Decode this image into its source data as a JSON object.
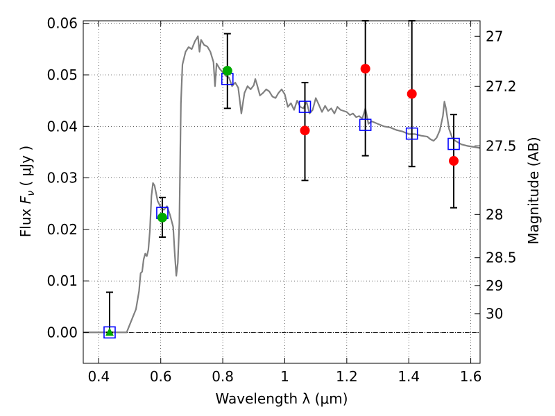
{
  "chart_data": {
    "type": "scatter",
    "xlabel": "Wavelength  λ (μm)",
    "ylabel": "Flux  Fν  ( μJy )",
    "ylabel_parts": {
      "prefix": "Flux  ",
      "symbol": "F",
      "subscript": "ν",
      "suffix": "  ( μJy )"
    },
    "y2label": "Magnitude (AB)",
    "xlim": [
      0.35,
      1.63
    ],
    "ylim": [
      -0.006,
      0.0605
    ],
    "xticks": [
      0.4,
      0.6,
      0.8,
      1,
      1.2,
      1.4,
      1.6
    ],
    "xtick_labels": [
      "0.4",
      "0.6",
      "0.8",
      "1",
      "1.2",
      "1.4",
      "1.6"
    ],
    "yticks": [
      0.0,
      0.01,
      0.02,
      0.03,
      0.04,
      0.05,
      0.06
    ],
    "ytick_labels": [
      "0.00",
      "0.01",
      "0.02",
      "0.03",
      "0.04",
      "0.05",
      "0.06"
    ],
    "y2ticks": [
      {
        "label": "27",
        "flux": 0.0575
      },
      {
        "label": "27.2",
        "flux": 0.0478
      },
      {
        "label": "27.5",
        "flux": 0.0362
      },
      {
        "label": "28",
        "flux": 0.0229
      },
      {
        "label": "28.5",
        "flux": 0.0145
      },
      {
        "label": "29",
        "flux": 0.0091
      },
      {
        "label": "30",
        "flux": 0.0036
      }
    ],
    "grid": true,
    "zero_line": 0,
    "colors": {
      "model": "#808080",
      "model_photometry": "#0000ff",
      "detection": "#00aa00",
      "nondetection": "#ff0000",
      "errorbar": "#000000"
    },
    "series": [
      {
        "kind": "line",
        "points": [
          [
            0.35,
            0.0
          ],
          [
            0.49,
            0.0
          ],
          [
            0.5,
            0.0015
          ],
          [
            0.51,
            0.003
          ],
          [
            0.52,
            0.0045
          ],
          [
            0.53,
            0.008
          ],
          [
            0.535,
            0.0115
          ],
          [
            0.54,
            0.0118
          ],
          [
            0.545,
            0.0142
          ],
          [
            0.55,
            0.0153
          ],
          [
            0.555,
            0.0148
          ],
          [
            0.56,
            0.016
          ],
          [
            0.565,
            0.0198
          ],
          [
            0.57,
            0.0265
          ],
          [
            0.575,
            0.029
          ],
          [
            0.58,
            0.0285
          ],
          [
            0.59,
            0.0255
          ],
          [
            0.6,
            0.0243
          ],
          [
            0.61,
            0.0238
          ],
          [
            0.62,
            0.0245
          ],
          [
            0.63,
            0.0228
          ],
          [
            0.64,
            0.0205
          ],
          [
            0.645,
            0.0155
          ],
          [
            0.65,
            0.011
          ],
          [
            0.655,
            0.0135
          ],
          [
            0.66,
            0.0212
          ],
          [
            0.665,
            0.0445
          ],
          [
            0.67,
            0.052
          ],
          [
            0.68,
            0.0545
          ],
          [
            0.69,
            0.0554
          ],
          [
            0.7,
            0.055
          ],
          [
            0.71,
            0.0565
          ],
          [
            0.72,
            0.0575
          ],
          [
            0.725,
            0.0545
          ],
          [
            0.73,
            0.0568
          ],
          [
            0.74,
            0.0558
          ],
          [
            0.75,
            0.0555
          ],
          [
            0.76,
            0.0545
          ],
          [
            0.77,
            0.0525
          ],
          [
            0.775,
            0.0478
          ],
          [
            0.78,
            0.0522
          ],
          [
            0.79,
            0.0512
          ],
          [
            0.8,
            0.0505
          ],
          [
            0.81,
            0.0498
          ],
          [
            0.82,
            0.0495
          ],
          [
            0.83,
            0.0478
          ],
          [
            0.84,
            0.0485
          ],
          [
            0.85,
            0.0475
          ],
          [
            0.86,
            0.0425
          ],
          [
            0.87,
            0.0465
          ],
          [
            0.88,
            0.0478
          ],
          [
            0.89,
            0.0472
          ],
          [
            0.9,
            0.048
          ],
          [
            0.905,
            0.0492
          ],
          [
            0.91,
            0.0482
          ],
          [
            0.92,
            0.046
          ],
          [
            0.93,
            0.0465
          ],
          [
            0.94,
            0.0472
          ],
          [
            0.95,
            0.0468
          ],
          [
            0.96,
            0.0458
          ],
          [
            0.97,
            0.0455
          ],
          [
            0.98,
            0.0465
          ],
          [
            0.99,
            0.0472
          ],
          [
            1.0,
            0.0462
          ],
          [
            1.01,
            0.0438
          ],
          [
            1.02,
            0.0445
          ],
          [
            1.03,
            0.0432
          ],
          [
            1.04,
            0.045
          ],
          [
            1.05,
            0.0438
          ],
          [
            1.06,
            0.0435
          ],
          [
            1.07,
            0.0448
          ],
          [
            1.08,
            0.0425
          ],
          [
            1.09,
            0.0432
          ],
          [
            1.1,
            0.0455
          ],
          [
            1.11,
            0.0442
          ],
          [
            1.12,
            0.0428
          ],
          [
            1.13,
            0.044
          ],
          [
            1.14,
            0.043
          ],
          [
            1.15,
            0.0435
          ],
          [
            1.16,
            0.0425
          ],
          [
            1.17,
            0.0438
          ],
          [
            1.18,
            0.0432
          ],
          [
            1.19,
            0.043
          ],
          [
            1.2,
            0.0428
          ],
          [
            1.21,
            0.0422
          ],
          [
            1.22,
            0.0425
          ],
          [
            1.23,
            0.0418
          ],
          [
            1.24,
            0.042
          ],
          [
            1.25,
            0.0415
          ],
          [
            1.26,
            0.0435
          ],
          [
            1.27,
            0.0405
          ],
          [
            1.28,
            0.041
          ],
          [
            1.3,
            0.0405
          ],
          [
            1.32,
            0.04
          ],
          [
            1.34,
            0.0398
          ],
          [
            1.36,
            0.0393
          ],
          [
            1.38,
            0.039
          ],
          [
            1.4,
            0.0385
          ],
          [
            1.42,
            0.0385
          ],
          [
            1.44,
            0.0382
          ],
          [
            1.46,
            0.038
          ],
          [
            1.47,
            0.0375
          ],
          [
            1.48,
            0.0372
          ],
          [
            1.49,
            0.0378
          ],
          [
            1.5,
            0.0392
          ],
          [
            1.51,
            0.042
          ],
          [
            1.515,
            0.0448
          ],
          [
            1.52,
            0.0435
          ],
          [
            1.53,
            0.0395
          ],
          [
            1.54,
            0.0378
          ],
          [
            1.55,
            0.0372
          ],
          [
            1.57,
            0.0365
          ],
          [
            1.59,
            0.0362
          ],
          [
            1.61,
            0.036
          ],
          [
            1.63,
            0.0358
          ]
        ]
      },
      {
        "kind": "square",
        "points": [
          [
            0.435,
            0.0
          ],
          [
            0.605,
            0.0232
          ],
          [
            0.815,
            0.0492
          ],
          [
            1.065,
            0.0438
          ],
          [
            1.26,
            0.0403
          ],
          [
            1.41,
            0.0386
          ],
          [
            1.545,
            0.0366
          ]
        ]
      },
      {
        "kind": "circle-detection",
        "points": [
          [
            0.605,
            0.0223
          ],
          [
            0.815,
            0.0508
          ]
        ]
      },
      {
        "kind": "triangle-detection",
        "points": [
          [
            0.435,
            0.0
          ]
        ]
      },
      {
        "kind": "circle-nondetection",
        "points": [
          [
            1.065,
            0.0392
          ],
          [
            1.26,
            0.0512
          ],
          [
            1.41,
            0.0463
          ],
          [
            1.545,
            0.0333
          ]
        ]
      },
      {
        "kind": "errorbar",
        "points": [
          {
            "x": 0.435,
            "low": 0.0,
            "high": 0.0078
          },
          {
            "x": 0.605,
            "low": 0.0185,
            "high": 0.0262
          },
          {
            "x": 0.815,
            "low": 0.0435,
            "high": 0.058
          },
          {
            "x": 1.065,
            "low": 0.0295,
            "high": 0.0485
          },
          {
            "x": 1.26,
            "low": 0.0343,
            "high": 0.0605
          },
          {
            "x": 1.41,
            "low": 0.0322,
            "high": 0.0605
          },
          {
            "x": 1.545,
            "low": 0.0242,
            "high": 0.0423
          }
        ]
      }
    ]
  }
}
